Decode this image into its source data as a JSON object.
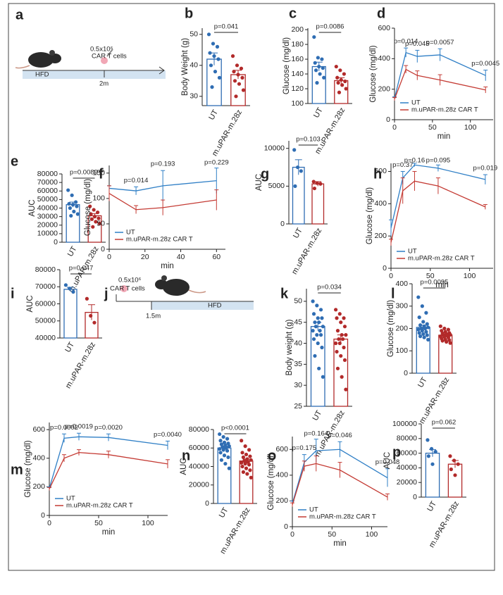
{
  "chart_data": [
    {
      "type": "bar",
      "label": "b",
      "ylabel": "Body Weight (g)",
      "categories": [
        "UT",
        "m.uPAR-m.28z"
      ],
      "values": [
        42,
        37
      ],
      "errors": [
        2,
        1.4
      ],
      "colors": [
        "#2f6db3",
        "#b22a2a"
      ],
      "points": [
        [
          50,
          47,
          46,
          44,
          43,
          42,
          40,
          38,
          36,
          33
        ],
        [
          43,
          40,
          39,
          38,
          37,
          36,
          35,
          34,
          32,
          30
        ]
      ],
      "annotation": "p=0.041",
      "ylim": [
        27,
        52
      ],
      "yticks": [
        30,
        40,
        50
      ]
    },
    {
      "type": "bar",
      "label": "c",
      "ylabel": "Glucose (mg/dl)",
      "categories": [
        "UT",
        "m.uPAR-m.28z"
      ],
      "values": [
        150,
        131
      ],
      "errors": [
        6,
        4
      ],
      "colors": [
        "#2f6db3",
        "#b22a2a"
      ],
      "points": [
        [
          190,
          162,
          160,
          155,
          150,
          148,
          145,
          140,
          135,
          128
        ],
        [
          150,
          145,
          140,
          135,
          132,
          130,
          128,
          125,
          120,
          115
        ]
      ],
      "annotation": "p=0.0086",
      "ylim": [
        100,
        202
      ],
      "yticks": [
        100,
        120,
        140,
        160,
        180,
        200
      ]
    },
    {
      "type": "line",
      "label": "d",
      "ylabel": "Glucose (mg/dl)",
      "xlabel": "min",
      "x": [
        0,
        15,
        30,
        60,
        120
      ],
      "series": [
        {
          "name": "UT",
          "color": "#2f7fc6",
          "values": [
            140,
            440,
            415,
            425,
            290
          ],
          "errors": [
            10,
            30,
            40,
            40,
            35
          ]
        },
        {
          "name": "m.uPAR-m.28z CAR T",
          "color": "#c43a33",
          "values": [
            135,
            330,
            290,
            260,
            195
          ],
          "errors": [
            10,
            25,
            30,
            35,
            20
          ]
        }
      ],
      "annotations": [
        "p=0.014",
        "p=0.045",
        "p=0.0057",
        "p=0.0045"
      ],
      "xlim": [
        0,
        130
      ],
      "xticks": [
        0,
        50,
        100
      ],
      "ylim": [
        0,
        600
      ],
      "yticks": [
        0,
        200,
        400,
        600
      ]
    },
    {
      "type": "bar",
      "label": "e",
      "ylabel": "AUC",
      "categories": [
        "UT",
        "m.uPAR-m.28z"
      ],
      "values": [
        44000,
        31000
      ],
      "errors": [
        3000,
        2500
      ],
      "colors": [
        "#2f6db3",
        "#b22a2a"
      ],
      "points": [
        [
          61000,
          55000,
          47000,
          45000,
          44000,
          42000,
          40000,
          36000,
          33000,
          31000
        ],
        [
          42000,
          38000,
          35000,
          33000,
          30000,
          28000,
          27000,
          24000,
          22000,
          18000
        ]
      ],
      "annotation": "p=0.0089",
      "ylim": [
        0,
        80000
      ],
      "yticks": [
        0,
        10000,
        20000,
        30000,
        40000,
        50000,
        60000,
        70000,
        80000
      ]
    },
    {
      "type": "line",
      "label": "f",
      "ylabel": "Glucose (mg/dl)",
      "xlabel": "min",
      "x": [
        0,
        15,
        30,
        60
      ],
      "series": [
        {
          "name": "UT",
          "color": "#2f7fc6",
          "values": [
            120,
            115,
            125,
            135
          ],
          "errors": [
            5,
            8,
            30,
            25
          ]
        },
        {
          "name": "m.uPAR-m.28z CAR  T",
          "color": "#c43a33",
          "values": [
            110,
            78,
            82,
            97
          ],
          "errors": [
            15,
            8,
            15,
            20
          ]
        }
      ],
      "annotations": [
        "p=0.014",
        "p=0.193",
        "p=0.229"
      ],
      "xlim": [
        0,
        65
      ],
      "xticks": [
        0,
        20,
        40,
        60
      ],
      "ylim": [
        0,
        165
      ],
      "yticks": [
        0,
        50,
        100,
        150
      ]
    },
    {
      "type": "bar",
      "label": "g",
      "ylabel": "AUC",
      "categories": [
        "UT",
        "m.uPAR-m.28z"
      ],
      "values": [
        7500,
        5300
      ],
      "errors": [
        1000,
        300
      ],
      "colors": [
        "#2f6db3",
        "#b22a2a"
      ],
      "points": [
        [
          9800,
          7500,
          7000,
          5000
        ],
        [
          5600,
          5400,
          5300,
          4700
        ]
      ],
      "annotation": "p=0.103",
      "ylim": [
        0,
        11000
      ],
      "yticks": [
        0,
        5000,
        10000
      ]
    },
    {
      "type": "line",
      "label": "h",
      "ylabel": "Glucose (mg/dl)",
      "xlabel": "min",
      "x": [
        0,
        15,
        30,
        60,
        120
      ],
      "series": [
        {
          "name": "UT",
          "color": "#2f7fc6",
          "values": [
            250,
            560,
            640,
            620,
            550
          ],
          "errors": [
            50,
            40,
            10,
            20,
            30
          ]
        },
        {
          "name": "m.uPAR-m.28z CAR T",
          "color": "#c43a33",
          "values": [
            160,
            480,
            540,
            510,
            380
          ],
          "errors": [
            20,
            80,
            60,
            50,
            15
          ]
        }
      ],
      "annotations": [
        "p=0.37",
        "p=0.16",
        "p=0.095",
        "p=0.019"
      ],
      "xlim": [
        0,
        130
      ],
      "xticks": [
        0,
        50,
        100
      ],
      "ylim": [
        0,
        650
      ],
      "yticks": [
        0,
        200,
        400,
        600
      ]
    },
    {
      "type": "bar",
      "label": "i",
      "ylabel": "AUC",
      "categories": [
        "UT",
        "m.uPAR-m.28z"
      ],
      "values": [
        68500,
        55000
      ],
      "errors": [
        1200,
        4500
      ],
      "colors": [
        "#2f6db3",
        "#b22a2a"
      ],
      "points": [
        [
          71000,
          69000,
          67000
        ],
        [
          63000,
          53000,
          49000
        ]
      ],
      "annotation": "p=0.047",
      "ylim": [
        40000,
        80000
      ],
      "yticks": [
        40000,
        50000,
        60000,
        70000,
        80000
      ]
    },
    {
      "type": "bar",
      "label": "k",
      "ylabel": "Body weight (g)",
      "categories": [
        "UT",
        "m.uPAR-m.28z"
      ],
      "values": [
        44,
        41
      ],
      "errors": [
        1,
        1
      ],
      "colors": [
        "#2f6db3",
        "#b22a2a"
      ],
      "points": [
        [
          50,
          49,
          48,
          47,
          46,
          46,
          45,
          45,
          44,
          44,
          43,
          43,
          42,
          42,
          41,
          40,
          39,
          37,
          34,
          32
        ],
        [
          48,
          47,
          46,
          46,
          45,
          44,
          43,
          42,
          42,
          41,
          41,
          40,
          40,
          39,
          38,
          37,
          36,
          34,
          32,
          29
        ]
      ],
      "annotation": "p=0.034",
      "ylim": [
        25,
        53
      ],
      "yticks": [
        25,
        30,
        35,
        40,
        45,
        50
      ]
    },
    {
      "type": "bar",
      "label": "l",
      "ylabel": "Glucose (mg/dl)",
      "categories": [
        "UT",
        "m.uPAR-m.28z"
      ],
      "values": [
        205,
        170
      ],
      "errors": [
        10,
        4
      ],
      "colors": [
        "#2f6db3",
        "#b22a2a"
      ],
      "points": [
        [
          340,
          300,
          270,
          250,
          230,
          220,
          215,
          210,
          205,
          200,
          200,
          195,
          190,
          185,
          180,
          175,
          170,
          165,
          160,
          150
        ],
        [
          210,
          200,
          195,
          190,
          185,
          180,
          178,
          175,
          172,
          170,
          168,
          165,
          162,
          160,
          155,
          150,
          148,
          145,
          140,
          135
        ]
      ],
      "annotation": "p=0.0095",
      "ylim": [
        0,
        400
      ],
      "yticks": [
        0,
        100,
        200,
        300,
        400
      ]
    },
    {
      "type": "line",
      "label": "m",
      "ylabel": "Glucose (mg/dl)",
      "xlabel": "min",
      "x": [
        0,
        15,
        30,
        60,
        120
      ],
      "series": [
        {
          "name": "UT",
          "color": "#2f7fc6",
          "values": [
            190,
            540,
            550,
            545,
            490
          ],
          "errors": [
            10,
            30,
            25,
            25,
            30
          ]
        },
        {
          "name": "m.uPAR-m.28z CAR T",
          "color": "#c43a33",
          "values": [
            185,
            400,
            440,
            425,
            360
          ],
          "errors": [
            10,
            25,
            20,
            25,
            30
          ]
        }
      ],
      "annotations": [
        "p=0.0002",
        "p=0.0019",
        "p=0.0020",
        "p=0.0040"
      ],
      "xlim": [
        0,
        120
      ],
      "xticks": [
        0,
        50,
        100
      ],
      "ylim": [
        0,
        650
      ],
      "yticks": [
        0,
        200,
        400,
        600
      ]
    },
    {
      "type": "bar",
      "label": "n",
      "ylabel": "AUC",
      "categories": [
        "UT",
        "m.uPAR-m.28z"
      ],
      "values": [
        60000,
        46000
      ],
      "errors": [
        2000,
        2000
      ],
      "colors": [
        "#2f6db3",
        "#b22a2a"
      ],
      "points": [
        [
          75000,
          72000,
          70000,
          68000,
          66000,
          65000,
          64000,
          63000,
          62000,
          61000,
          60000,
          59000,
          58000,
          57000,
          55000,
          52000,
          50000,
          47000,
          43000,
          38000
        ],
        [
          68000,
          62000,
          58000,
          55000,
          53000,
          51000,
          50000,
          48000,
          47000,
          46000,
          45000,
          44000,
          43000,
          42000,
          40000,
          38000,
          36000,
          34000,
          32000,
          28000
        ]
      ],
      "annotation": "p<0.0001",
      "ylim": [
        0,
        80000
      ],
      "yticks": [
        0,
        20000,
        40000,
        60000,
        80000
      ]
    },
    {
      "type": "line",
      "label": "o",
      "ylabel": "Glucose (mg/dl)",
      "xlabel": "min",
      "x": [
        0,
        15,
        30,
        60,
        120
      ],
      "series": [
        {
          "name": "UT",
          "color": "#2f7fc6",
          "values": [
            180,
            500,
            590,
            600,
            380
          ],
          "errors": [
            20,
            60,
            90,
            60,
            70
          ]
        },
        {
          "name": "m.uPAR-m.28z CAR T",
          "color": "#c43a33",
          "values": [
            170,
            470,
            490,
            440,
            230
          ],
          "errors": [
            15,
            40,
            60,
            60,
            25
          ]
        }
      ],
      "annotations": [
        "p=0.175",
        "p=0.164",
        "p=0.046",
        "p=0.048"
      ],
      "xlim": [
        0,
        120
      ],
      "xticks": [
        0,
        50,
        100
      ],
      "ylim": [
        0,
        700
      ],
      "yticks": [
        0,
        200,
        400,
        600
      ]
    },
    {
      "type": "bar",
      "label": "p",
      "ylabel": "AUC",
      "categories": [
        "UT",
        "m.uPAR-m.28z"
      ],
      "values": [
        60000,
        45000
      ],
      "errors": [
        5000,
        5000
      ],
      "colors": [
        "#2f6db3",
        "#b22a2a"
      ],
      "points": [
        [
          78000,
          66000,
          62000,
          56000,
          45000
        ],
        [
          56000,
          50000,
          45000,
          38000,
          30000
        ]
      ],
      "annotation": "p=0.062",
      "ylim": [
        0,
        100000
      ],
      "yticks": [
        0,
        20000,
        40000,
        60000,
        80000,
        100000
      ]
    }
  ],
  "schematics": [
    {
      "label": "a",
      "dose": "0.5x10⁶",
      "cells": "CAR T cells",
      "diet": "HFD",
      "time": "2m"
    },
    {
      "label": "j",
      "dose": "0.5x10⁶",
      "cells": "CAR T cells",
      "diet": "HFD",
      "time": "1.5m"
    }
  ]
}
